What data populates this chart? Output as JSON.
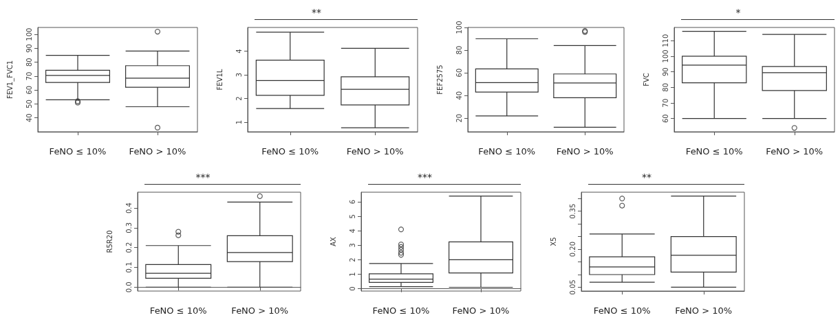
{
  "chart_data": [
    {
      "type": "box",
      "ylabel": "FEV1_FVC1",
      "categories": [
        "FeNO ≤ 10%",
        "FeNO > 10%"
      ],
      "ylim": [
        30,
        105
      ],
      "yticks": [
        40,
        50,
        60,
        70,
        80,
        90,
        100
      ],
      "boxes": [
        {
          "low": 53,
          "q1": 65.5,
          "median": 70.5,
          "q3": 74.2,
          "high": 85,
          "outliers": [
            51,
            52
          ]
        },
        {
          "low": 48,
          "q1": 62,
          "median": 68.5,
          "q3": 77.5,
          "high": 88,
          "outliers": [
            102,
            33
          ]
        }
      ]
    },
    {
      "type": "box",
      "ylabel": "FEV1L",
      "annotations": [
        "**"
      ],
      "categories": [
        "FeNO ≤ 10%",
        "FeNO > 10%"
      ],
      "ylim": [
        0.6,
        5
      ],
      "yticks": [
        1,
        2,
        3,
        4
      ],
      "boxes": [
        {
          "low": 1.58,
          "q1": 2.14,
          "median": 2.76,
          "q3": 3.62,
          "high": 4.8
        },
        {
          "low": 0.77,
          "q1": 1.73,
          "median": 2.39,
          "q3": 2.92,
          "high": 4.12
        }
      ]
    },
    {
      "type": "box",
      "ylabel": "FEF2575",
      "categories": [
        "FeNO ≤ 10%",
        "FeNO > 10%"
      ],
      "ylim": [
        8,
        100
      ],
      "yticks": [
        20,
        40,
        60,
        80,
        100
      ],
      "boxes": [
        {
          "low": 22,
          "q1": 43,
          "median": 51.3,
          "q3": 63.4,
          "high": 90
        },
        {
          "low": 12,
          "q1": 38,
          "median": 51,
          "q3": 59,
          "high": 84,
          "outliers": [
            96,
            97
          ]
        }
      ]
    },
    {
      "type": "box",
      "ylabel": "FVC",
      "annotations": [
        "*"
      ],
      "categories": [
        "FeNO ≤ 10%",
        "FeNO > 10%"
      ],
      "ylim": [
        51.5,
        118.5
      ],
      "yticks": [
        60,
        70,
        80,
        90,
        100,
        110
      ],
      "boxes": [
        {
          "low": 60,
          "q1": 83,
          "median": 94.3,
          "q3": 100,
          "high": 116
        },
        {
          "low": 60,
          "q1": 78,
          "median": 89.5,
          "q3": 93.4,
          "high": 114,
          "outliers": [
            54
          ]
        }
      ]
    },
    {
      "type": "box",
      "ylabel": "R5R20",
      "annotations": [
        "***"
      ],
      "categories": [
        "FeNO ≤ 10%",
        "FeNO > 10%"
      ],
      "ylim": [
        -0.02,
        0.48
      ],
      "yticks": [
        {
          "value": 0,
          "label": "0.0"
        },
        0.1,
        0.2,
        0.3,
        0.4
      ],
      "boxes": [
        {
          "low": 0,
          "q1": 0.045,
          "median": 0.07,
          "q3": 0.114,
          "high": 0.21,
          "outliers": [
            0.28,
            0.262
          ]
        },
        {
          "low": 0,
          "q1": 0.129,
          "median": 0.175,
          "q3": 0.26,
          "high": 0.43,
          "outliers": [
            0.46
          ]
        }
      ]
    },
    {
      "type": "box",
      "ylabel": "AX",
      "annotations": [
        "***"
      ],
      "categories": [
        "FeNO ≤ 10%",
        "FeNO > 10%"
      ],
      "ylim": [
        -0.16,
        6.67
      ],
      "yticks": [
        0,
        1,
        2,
        3,
        4,
        5,
        6
      ],
      "boxes": [
        {
          "low": 0.14,
          "q1": 0.44,
          "median": 0.66,
          "q3": 1.03,
          "high": 1.74,
          "outliers": [
            4.1,
            3.06,
            2.89,
            2.7,
            2.49,
            2.34
          ]
        },
        {
          "low": 0.1,
          "q1": 1.09,
          "median": 2,
          "q3": 3.24,
          "high": 6.4
        }
      ]
    },
    {
      "type": "box",
      "ylabel": "X5",
      "annotations": [
        "**"
      ],
      "categories": [
        "FeNO ≤ 10%",
        "FeNO > 10%"
      ],
      "ylim": [
        0.035,
        0.425
      ],
      "yticks": [
        {
          "value": 0.05,
          "label": "0.05"
        },
        {
          "value": 0.1,
          "label": null
        },
        {
          "value": 0.15,
          "label": null
        },
        {
          "value": 0.2,
          "label": "0.20"
        },
        {
          "value": 0.25,
          "label": null
        },
        {
          "value": 0.3,
          "label": null
        },
        {
          "value": 0.35,
          "label": "0.35"
        },
        {
          "value": 0.4,
          "label": null
        }
      ],
      "boxes": [
        {
          "low": 0.07,
          "q1": 0.1,
          "median": 0.13,
          "q3": 0.17,
          "high": 0.26,
          "outliers": [
            0.4,
            0.372
          ]
        },
        {
          "low": 0.05,
          "q1": 0.11,
          "median": 0.176,
          "q3": 0.25,
          "high": 0.41
        }
      ]
    }
  ]
}
